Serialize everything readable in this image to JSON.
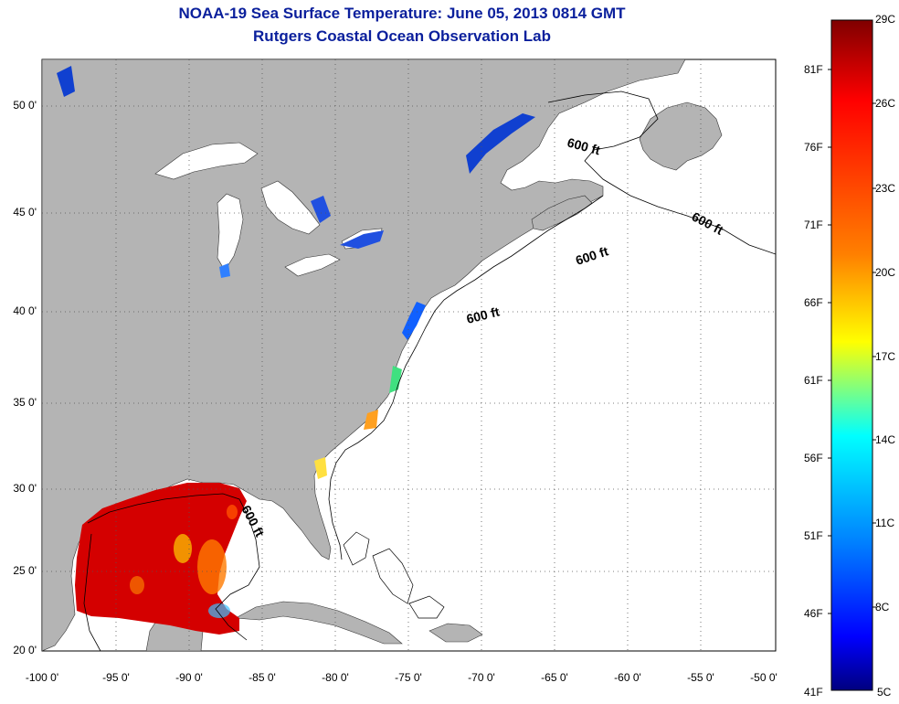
{
  "title": {
    "line1": "NOAA-19 Sea Surface Temperature:  June 05, 2013 0814 GMT",
    "line2": "Rutgers Coastal Ocean Observation Lab"
  },
  "map": {
    "lat_labels": [
      "50 0'",
      "45 0'",
      "40 0'",
      "35 0'",
      "30 0'",
      "25 0'",
      "20 0'"
    ],
    "lon_labels": [
      "-100 0'",
      "-95 0'",
      "-90 0'",
      "-85 0'",
      "-80 0'",
      "-75 0'",
      "-70 0'",
      "-65 0'",
      "-60 0'",
      "-55 0'",
      "-50 0'"
    ],
    "contour_labels": [
      "600 ft",
      "600 ft",
      "600 ft",
      "600 ft",
      "600 ft"
    ],
    "colors": {
      "land": "#b4b4b4",
      "ocean": "#ffffff",
      "grid": "#555555"
    }
  },
  "colorbar": {
    "celsius_labels": [
      "29C",
      "26C",
      "23C",
      "20C",
      "17C",
      "14C",
      "11C",
      "8C",
      "5C"
    ],
    "fahrenheit_labels": [
      "81F",
      "76F",
      "71F",
      "66F",
      "61F",
      "56F",
      "51F",
      "46F",
      "41F"
    ],
    "colors": [
      "#7f0000",
      "#ff0000",
      "#ff8000",
      "#ffff00",
      "#80ff80",
      "#00ffff",
      "#0080ff",
      "#0000ff",
      "#00007f"
    ]
  }
}
